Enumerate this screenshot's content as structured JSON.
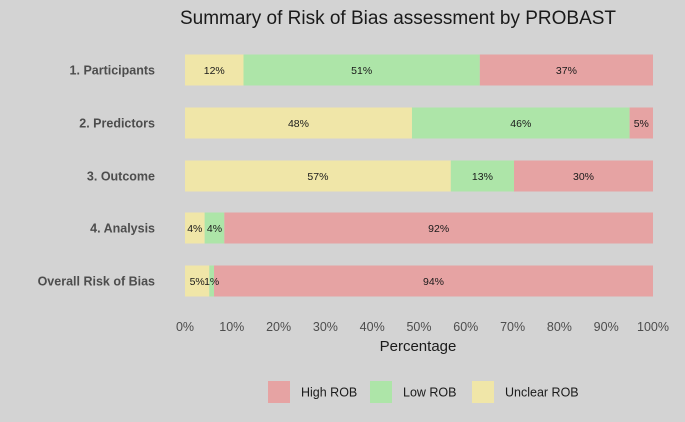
{
  "chart_data": {
    "type": "bar",
    "orientation": "horizontal",
    "stacked": true,
    "title": "Summary of Risk of Bias assessment by PROBAST",
    "xlabel": "Percentage",
    "ylabel": "",
    "xlim": [
      0,
      100
    ],
    "x_ticks": [
      "0%",
      "10%",
      "20%",
      "30%",
      "40%",
      "50%",
      "60%",
      "70%",
      "80%",
      "90%",
      "100%"
    ],
    "grid": false,
    "legend_position": "bottom",
    "categories": [
      "1. Participants",
      "2. Predictors",
      "3. Outcome",
      "4. Analysis",
      "Overall Risk of Bias"
    ],
    "series": [
      {
        "name": "Unclear ROB",
        "color": "#f0e6a8",
        "values": [
          12.5,
          48.5,
          56.8,
          4.2,
          5.2
        ],
        "labels": [
          "12%",
          "48%",
          "57%",
          "4%",
          "5%"
        ]
      },
      {
        "name": "Low ROB",
        "color": "#ade5a8",
        "values": [
          50.5,
          46.5,
          13.5,
          4.2,
          1.0
        ],
        "labels": [
          "51%",
          "46%",
          "13%",
          "4%",
          "1%"
        ]
      },
      {
        "name": "High ROB",
        "color": "#e6a3a3",
        "values": [
          37.0,
          5.0,
          29.7,
          91.6,
          93.8
        ],
        "labels": [
          "37%",
          "5%",
          "30%",
          "92%",
          "94%"
        ]
      }
    ],
    "legend": [
      {
        "name": "High ROB",
        "color": "#e6a3a3"
      },
      {
        "name": "Low ROB",
        "color": "#ade5a8"
      },
      {
        "name": "Unclear ROB",
        "color": "#f0e6a8"
      }
    ]
  }
}
